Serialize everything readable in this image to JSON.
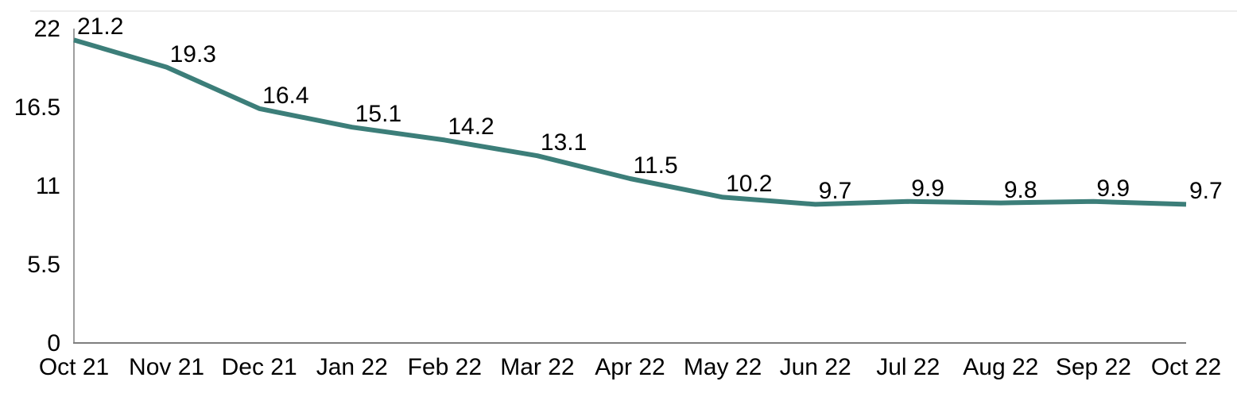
{
  "chart_data": {
    "type": "line",
    "title": "",
    "categories": [
      "Oct 21",
      "Nov 21",
      "Dec 21",
      "Jan 22",
      "Feb 22",
      "Mar 22",
      "Apr 22",
      "May 22",
      "Jun 22",
      "Jul 22",
      "Aug 22",
      "Sep 22",
      "Oct 22"
    ],
    "values": [
      21.2,
      19.3,
      16.4,
      15.1,
      14.2,
      13.1,
      11.5,
      10.2,
      9.7,
      9.9,
      9.8,
      9.9,
      9.7
    ],
    "data_labels": [
      "21.2",
      "19.3",
      "16.4",
      "15.1",
      "14.2",
      "13.1",
      "11.5",
      "10.2",
      "9.7",
      "9.9",
      "9.8",
      "9.9",
      "9.7"
    ],
    "xlabel": "",
    "ylabel": "",
    "y_ticks": [
      0,
      5.5,
      11,
      16.5,
      22
    ],
    "y_tick_labels": [
      "0",
      "5.5",
      "11",
      "16.5",
      "22"
    ],
    "ylim": [
      0,
      22
    ],
    "grid": false,
    "legend": false,
    "colors": {
      "line": "#3C7E79",
      "axis": "#7E7E7E",
      "plot_border": "#EDEDED",
      "text": "#000000",
      "background": "#FFFFFF"
    }
  }
}
